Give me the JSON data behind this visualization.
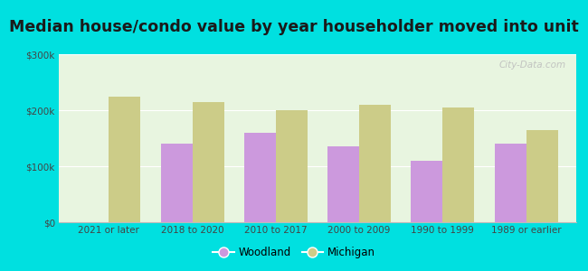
{
  "title": "Median house/condo value by year householder moved into unit",
  "categories": [
    "2021 or later",
    "2018 to 2020",
    "2010 to 2017",
    "2000 to 2009",
    "1990 to 1999",
    "1989 or earlier"
  ],
  "woodland_values": [
    null,
    140000,
    160000,
    135000,
    110000,
    140000
  ],
  "michigan_values": [
    225000,
    215000,
    200000,
    210000,
    205000,
    165000
  ],
  "woodland_color": "#cc99dd",
  "michigan_color": "#cccc88",
  "background_outer": "#00e0e0",
  "background_inner_top": "#e8f5e0",
  "background_inner_bottom": "#f0faf0",
  "ylim": [
    0,
    300000
  ],
  "yticks": [
    0,
    100000,
    200000,
    300000
  ],
  "ytick_labels": [
    "$0",
    "$100k",
    "$200k",
    "$300k"
  ],
  "legend_woodland": "Woodland",
  "legend_michigan": "Michigan",
  "bar_width": 0.38,
  "title_fontsize": 12.5,
  "watermark": "City-Data.com"
}
